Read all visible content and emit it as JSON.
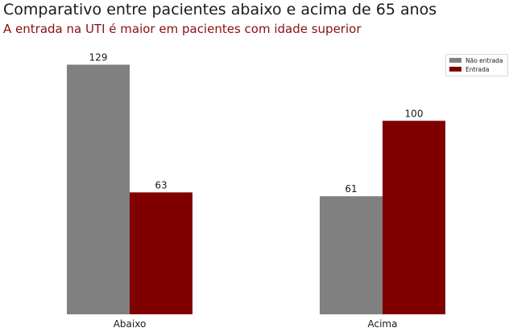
{
  "chart_data": {
    "type": "bar",
    "title": "Comparativo entre pacientes abaixo e acima de 65 anos",
    "subtitle": "A entrada na UTI é maior em pacientes com idade superior",
    "categories": [
      "Abaixo",
      "Acima"
    ],
    "series": [
      {
        "name": "Não entrada",
        "values": [
          129,
          61
        ],
        "color": "#808080"
      },
      {
        "name": "Entrada",
        "values": [
          63,
          100
        ],
        "color": "#800000"
      }
    ],
    "ylim": [
      0,
      135
    ],
    "grid": false,
    "legend": "top-right",
    "data_labels": true
  }
}
